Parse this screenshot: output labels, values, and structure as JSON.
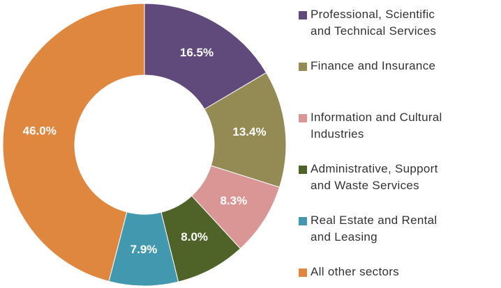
{
  "chart_data": {
    "type": "donut",
    "series": [
      {
        "name": "Professional, Scientific and Technical Services",
        "color": "#604a7b",
        "values": [
          16.5
        ],
        "value_labels": [
          "16.5%"
        ]
      },
      {
        "name": "Finance and Insurance",
        "color": "#948a54",
        "values": [
          13.4
        ],
        "value_labels": [
          "13.4%"
        ]
      },
      {
        "name": "Information and Cultural Industries",
        "color": "#d99694",
        "values": [
          8.3
        ],
        "value_labels": [
          "8.3%"
        ]
      },
      {
        "name": "Administrative, Support and Waste Services",
        "color": "#4f6228",
        "values": [
          8.0
        ],
        "value_labels": [
          "8.0%"
        ]
      },
      {
        "name": "Real Estate and Rental and Leasing",
        "color": "#4198af",
        "values": [
          7.9
        ],
        "value_labels": [
          "7.9%"
        ]
      },
      {
        "name": "All other sectors",
        "color": "#e0873f",
        "values": [
          46.0
        ],
        "value_labels": [
          "46.0%"
        ]
      }
    ],
    "legend": "right"
  }
}
